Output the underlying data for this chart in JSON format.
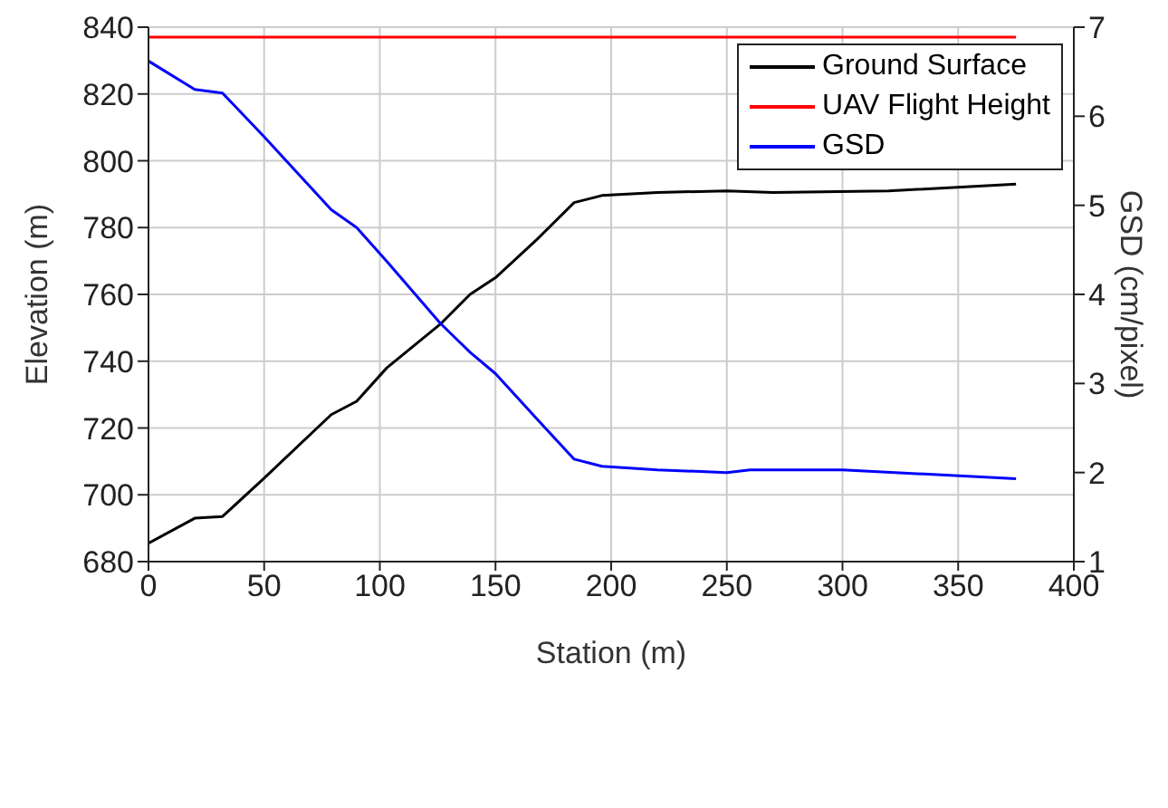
{
  "chart_data": {
    "type": "line",
    "xlabel": "Station (m)",
    "ylabel": "Elevation (m)",
    "y2label": "GSD (cm/pixel)",
    "xlim": [
      0,
      400
    ],
    "xticks": [
      0,
      50,
      100,
      150,
      200,
      250,
      300,
      350,
      400
    ],
    "ylim": [
      680,
      840
    ],
    "yticks": [
      680,
      700,
      720,
      740,
      760,
      780,
      800,
      820,
      840
    ],
    "y2lim": [
      1,
      7
    ],
    "y2ticks": [
      1,
      2,
      3,
      4,
      5,
      6,
      7
    ],
    "grid": true,
    "legend": "top right",
    "line_style": "solid",
    "marker": "none",
    "series": [
      {
        "name": "Ground Surface",
        "color": "#000000",
        "x": [
          0,
          20,
          32,
          50,
          79,
          90,
          103,
          126,
          139,
          150,
          168,
          184,
          196,
          220,
          250,
          270,
          320,
          375
        ],
        "values": [
          685.5,
          693,
          693.5,
          705,
          724,
          728,
          738,
          751,
          760,
          765,
          776.5,
          787.5,
          789.6,
          790.5,
          791,
          790.5,
          791,
          793
        ]
      },
      {
        "name": "UAV Flight Height",
        "color": "#ff0000",
        "x": [
          0,
          375
        ],
        "values": [
          837,
          837
        ]
      },
      {
        "name": "GSD",
        "color": "#0000ff",
        "axis": "y2",
        "x": [
          0,
          20,
          32,
          50,
          79,
          90,
          103,
          126,
          139,
          150,
          168,
          184,
          196,
          220,
          250,
          260,
          300,
          375
        ],
        "values": [
          6.62,
          6.3,
          6.26,
          5.77,
          4.95,
          4.75,
          4.37,
          3.68,
          3.35,
          3.11,
          2.6,
          2.15,
          2.07,
          2.03,
          2.0,
          2.03,
          2.03,
          1.93
        ]
      }
    ]
  }
}
